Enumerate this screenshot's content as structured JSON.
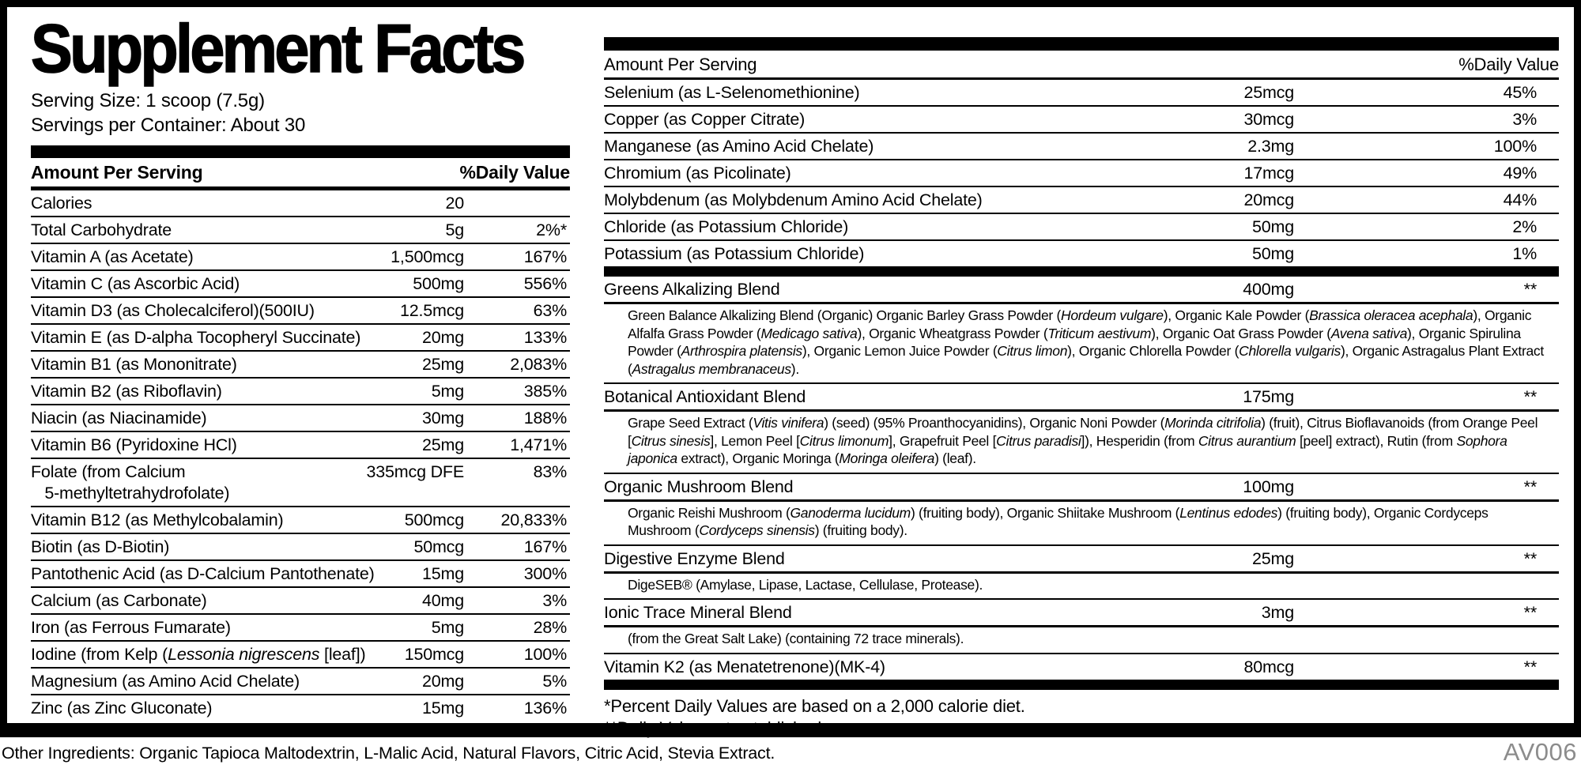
{
  "label": {
    "title": "Supplement Facts",
    "serving_size": "Serving Size: 1 scoop (7.5g)",
    "servings_per_container": "Servings per Container: About 30",
    "left_table": {
      "header": {
        "amount": "Amount Per Serving",
        "dv": "%Daily Value"
      },
      "rows": [
        {
          "name": "Calories",
          "amount": "20",
          "dv": ""
        },
        {
          "name": "Total Carbohydrate",
          "amount": "5g",
          "dv": "2%*"
        },
        {
          "name": "Vitamin A (as Acetate)",
          "amount": "1,500mcg",
          "dv": "167%"
        },
        {
          "name": "Vitamin C (as Ascorbic Acid)",
          "amount": "500mg",
          "dv": "556%"
        },
        {
          "name": "Vitamin D3 (as Cholecalciferol)(500IU)",
          "amount": "12.5mcg",
          "dv": "63%"
        },
        {
          "name": "Vitamin E (as D-alpha Tocopheryl Succinate)",
          "amount": "20mg",
          "dv": "133%"
        },
        {
          "name": "Vitamin B1 (as Mononitrate)",
          "amount": "25mg",
          "dv": "2,083%"
        },
        {
          "name": "Vitamin B2 (as Riboflavin)",
          "amount": "5mg",
          "dv": "385%"
        },
        {
          "name": "Niacin (as Niacinamide)",
          "amount": "30mg",
          "dv": "188%"
        },
        {
          "name": "Vitamin B6 (Pyridoxine HCl)",
          "amount": "25mg",
          "dv": "1,471%"
        },
        {
          "name": "Folate (from Calcium\n   5-methyltetrahydrofolate)",
          "amount": "335mcg DFE",
          "dv": "83%"
        },
        {
          "name": "Vitamin B12 (as Methylcobalamin)",
          "amount": "500mcg",
          "dv": "20,833%"
        },
        {
          "name": "Biotin (as D-Biotin)",
          "amount": "50mcg",
          "dv": "167%"
        },
        {
          "name": "Pantothenic Acid (as D-Calcium Pantothenate)",
          "amount": "15mg",
          "dv": "300%"
        },
        {
          "name": "Calcium (as Carbonate)",
          "amount": "40mg",
          "dv": "3%"
        },
        {
          "name": "Iron (as Ferrous Fumarate)",
          "amount": "5mg",
          "dv": "28%"
        },
        {
          "name": "Iodine (from Kelp (*Lessonia nigrescens* [leaf])",
          "amount": "150mcg",
          "dv": "100%"
        },
        {
          "name": "Magnesium (as Amino Acid Chelate)",
          "amount": "20mg",
          "dv": "5%"
        },
        {
          "name": "Zinc (as Zinc Gluconate)",
          "amount": "15mg",
          "dv": "136%"
        }
      ]
    },
    "right_table": {
      "header": {
        "amount": "Amount Per Serving",
        "dv": "%Daily Value"
      },
      "rows": [
        {
          "name": "Selenium (as L-Selenomethionine)",
          "amount": "25mcg",
          "dv": "45%"
        },
        {
          "name": "Copper (as Copper Citrate)",
          "amount": "30mcg",
          "dv": "3%"
        },
        {
          "name": "Manganese (as Amino Acid Chelate)",
          "amount": "2.3mg",
          "dv": "100%"
        },
        {
          "name": "Chromium (as Picolinate)",
          "amount": "17mcg",
          "dv": "49%"
        },
        {
          "name": "Molybdenum (as Molybdenum Amino Acid Chelate)",
          "amount": "20mcg",
          "dv": "44%"
        },
        {
          "name": "Chloride (as Potassium Chloride)",
          "amount": "50mg",
          "dv": "2%"
        },
        {
          "name": "Potassium (as Potassium Chloride)",
          "amount": "50mg",
          "dv": "1%"
        }
      ],
      "blends": [
        {
          "name": "Greens Alkalizing Blend",
          "amount": "400mg",
          "dv": "**",
          "description": "Green Balance Alkalizing Blend (Organic) Organic Barley Grass Powder (*Hordeum vulgare*), Organic Kale Powder (*Brassica oleracea acephala*), Organic Alfalfa Grass Powder (*Medicago sativa*), Organic Wheatgrass Powder (*Triticum aestivum*), Organic Oat Grass Powder (*Avena sativa*), Organic Spirulina Powder (*Arthrospira platensis*), Organic Lemon Juice Powder (*Citrus limon*), Organic Chlorella Powder (*Chlorella vulgaris*), Organic Astragalus Plant Extract (*Astragalus membranaceus*)."
        },
        {
          "name": "Botanical Antioxidant Blend",
          "amount": "175mg",
          "dv": "**",
          "description": "Grape Seed Extract (*Vitis vinifera*) (seed) (95% Proanthocyanidins), Organic Noni Powder (*Morinda citrifolia*) (fruit), Citrus Bioflavanoids (from Orange Peel [*Citrus sinesis*], Lemon Peel [*Citrus limonum*], Grapefruit Peel [*Citrus paradisi*]), Hesperidin (from *Citrus aurantium* [peel] extract), Rutin (from *Sophora japonica* extract), Organic Moringa (*Moringa oleifera*) (leaf)."
        },
        {
          "name": "Organic Mushroom Blend",
          "amount": "100mg",
          "dv": "**",
          "description": "Organic Reishi Mushroom (*Ganoderma lucidum*) (fruiting body), Organic Shiitake Mushroom (*Lentinus edodes*) (fruiting body), Organic Cordyceps Mushroom (*Cordyceps sinensis*) (fruiting body)."
        },
        {
          "name": "Digestive Enzyme Blend",
          "amount": "25mg",
          "dv": "**",
          "description": "DigeSEB® (Amylase, Lipase, Lactase, Cellulase, Protease)."
        },
        {
          "name": "Ionic Trace Mineral Blend",
          "amount": "3mg",
          "dv": "**",
          "description": "(from the Great Salt Lake) (containing 72 trace minerals)."
        },
        {
          "name": "Vitamin K2 (as Menatetrenone)(MK-4)",
          "amount": "80mcg",
          "dv": "**"
        }
      ]
    },
    "footnotes": [
      "*Percent Daily Values are based on a 2,000 calorie diet.",
      "**Daily Value not established."
    ],
    "other_ingredients": "Other Ingredients: Organic Tapioca Maltodextrin, L-Malic Acid, Natural Flavors, Citric Acid, Stevia Extract.",
    "code": "AV006"
  }
}
